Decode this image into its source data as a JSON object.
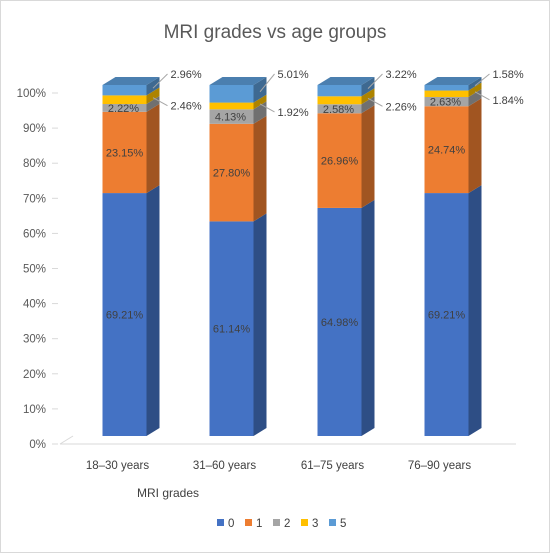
{
  "chart_data": {
    "type": "bar",
    "stacked": true,
    "percent": true,
    "three_d": true,
    "title": "MRI grades vs age groups",
    "xlabel": "MRI grades",
    "ylabel": "",
    "ylim": [
      0,
      100
    ],
    "yticks": [
      "0%",
      "10%",
      "20%",
      "30%",
      "40%",
      "50%",
      "60%",
      "70%",
      "80%",
      "90%",
      "100%"
    ],
    "categories": [
      "18–30 years",
      "31–60 years",
      "61–75 years",
      "76–90 years"
    ],
    "series": [
      {
        "name": "0",
        "color": "#4472c4",
        "values": [
          69.21,
          61.14,
          64.98,
          69.21
        ],
        "labels": [
          "69.21%",
          "61.14%",
          "64.98%",
          "69.21%"
        ]
      },
      {
        "name": "1",
        "color": "#ed7d31",
        "values": [
          23.15,
          27.8,
          26.96,
          24.74
        ],
        "labels": [
          "23.15%",
          "27.80%",
          "26.96%",
          "24.74%"
        ]
      },
      {
        "name": "2",
        "color": "#a5a5a5",
        "values": [
          2.22,
          4.13,
          2.58,
          2.63
        ],
        "labels": [
          "2.22%",
          "4.13%",
          "2.58%",
          "2.63%"
        ]
      },
      {
        "name": "3",
        "color": "#ffc000",
        "values": [
          2.46,
          1.92,
          2.26,
          1.84
        ],
        "labels": [
          "2.46%",
          "1.92%",
          "2.26%",
          "1.84%"
        ]
      },
      {
        "name": "5",
        "color": "#5b9bd5",
        "values": [
          2.96,
          5.01,
          3.22,
          1.58
        ],
        "labels": [
          "2.96%",
          "5.01%",
          "3.22%",
          "1.58%"
        ]
      }
    ],
    "legend_position": "bottom",
    "grid": false
  }
}
